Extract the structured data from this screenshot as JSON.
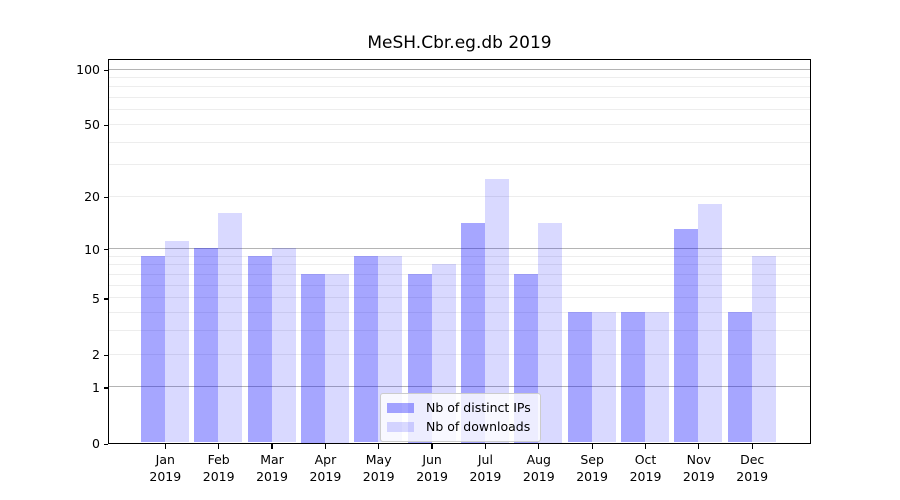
{
  "chart_data": {
    "type": "bar",
    "title": "MeSH.Cbr.eg.db 2019",
    "scale": "log1p",
    "categories": [
      "Jan 2019",
      "Feb 2019",
      "Mar 2019",
      "Apr 2019",
      "May 2019",
      "Jun 2019",
      "Jul 2019",
      "Aug 2019",
      "Sep 2019",
      "Oct 2019",
      "Nov 2019",
      "Dec 2019"
    ],
    "series": [
      {
        "name": "Nb of distinct IPs",
        "color": "#0000ff59",
        "values": [
          9,
          10,
          9,
          7,
          9,
          7,
          14,
          7,
          4,
          4,
          13,
          4
        ]
      },
      {
        "name": "Nb of downloads",
        "color": "#0000ff26",
        "values": [
          11,
          16,
          10,
          7,
          9,
          8,
          25,
          14,
          4,
          4,
          18,
          9
        ]
      }
    ],
    "ylim": [
      0,
      115
    ],
    "yticks": [
      100,
      50,
      20,
      10,
      5,
      2,
      1,
      0
    ],
    "grid": {
      "on": true,
      "major_values": [
        1,
        10,
        100
      ],
      "minor_values": [
        2,
        3,
        4,
        5,
        6,
        7,
        8,
        9,
        20,
        30,
        40,
        50,
        60,
        70,
        80,
        90
      ],
      "major_color": "#b4b4b4",
      "minor_color": "#ededed"
    },
    "legend_position": "lower center",
    "xlabel": "",
    "ylabel": ""
  }
}
